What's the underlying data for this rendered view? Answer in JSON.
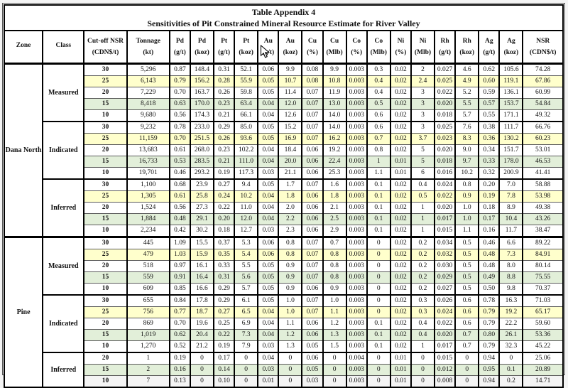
{
  "table": {
    "title": "Table Appendix 4",
    "subtitle": "Sensitivities of Pit Constrained Mineral Resource Estimate for River Valley",
    "columns": [
      {
        "label": "Zone",
        "unit": ""
      },
      {
        "label": "Class",
        "unit": ""
      },
      {
        "label": "Cut-off NSR",
        "unit": "(CDN$/t)"
      },
      {
        "label": "Tonnage",
        "unit": "(kt)"
      },
      {
        "label": "Pd",
        "unit": "(g/t)"
      },
      {
        "label": "Pd",
        "unit": "(koz)"
      },
      {
        "label": "Pt",
        "unit": "(g/t)"
      },
      {
        "label": "Pt",
        "unit": "(koz)"
      },
      {
        "label": "Au",
        "unit": "(g/t)"
      },
      {
        "label": "Au",
        "unit": "(koz)"
      },
      {
        "label": "Cu",
        "unit": "(%)"
      },
      {
        "label": "Cu",
        "unit": "(Mlb)"
      },
      {
        "label": "Co",
        "unit": "(%)"
      },
      {
        "label": "Co",
        "unit": "(Mlb)"
      },
      {
        "label": "Ni",
        "unit": "(%)"
      },
      {
        "label": "Ni",
        "unit": "(Mlb)"
      },
      {
        "label": "Rh",
        "unit": "(g/t)"
      },
      {
        "label": "Rh",
        "unit": "(koz)"
      },
      {
        "label": "Ag",
        "unit": "(g/t)"
      },
      {
        "label": "Ag",
        "unit": "(koz)"
      },
      {
        "label": "NSR",
        "unit": "(CDN$/t)"
      }
    ],
    "highlight_colors": {
      "25": "#FFFFCC",
      "15": "#E2EFD9"
    },
    "zones": [
      {
        "name": "Dana North",
        "classes": [
          {
            "name": "Measured",
            "rows": [
              [
                "30",
                "5,296",
                "0.87",
                "148.4",
                "0.31",
                "52.1",
                "0.06",
                "9.9",
                "0.08",
                "9.9",
                "0.003",
                "0.3",
                "0.02",
                "2",
                "0.027",
                "4.6",
                "0.62",
                "105.6",
                "74.28"
              ],
              [
                "25",
                "6,143",
                "0.79",
                "156.2",
                "0.28",
                "55.9",
                "0.05",
                "10.7",
                "0.08",
                "10.8",
                "0.003",
                "0.4",
                "0.02",
                "2.4",
                "0.025",
                "4.9",
                "0.60",
                "119.1",
                "67.86"
              ],
              [
                "20",
                "7,229",
                "0.70",
                "163.7",
                "0.26",
                "59.8",
                "0.05",
                "11.4",
                "0.07",
                "11.9",
                "0.003",
                "0.4",
                "0.02",
                "3",
                "0.022",
                "5.2",
                "0.59",
                "136.1",
                "60.99"
              ],
              [
                "15",
                "8,418",
                "0.63",
                "170.0",
                "0.23",
                "63.4",
                "0.04",
                "12.0",
                "0.07",
                "13.0",
                "0.003",
                "0.5",
                "0.02",
                "3",
                "0.020",
                "5.5",
                "0.57",
                "153.7",
                "54.84"
              ],
              [
                "10",
                "9,680",
                "0.56",
                "174.3",
                "0.21",
                "66.1",
                "0.04",
                "12.6",
                "0.07",
                "14.0",
                "0.003",
                "0.6",
                "0.02",
                "3",
                "0.018",
                "5.7",
                "0.55",
                "171.1",
                "49.32"
              ]
            ]
          },
          {
            "name": "Indicated",
            "rows": [
              [
                "30",
                "9,232",
                "0.78",
                "233.0",
                "0.29",
                "85.0",
                "0.05",
                "15.2",
                "0.07",
                "14.0",
                "0.003",
                "0.6",
                "0.02",
                "3",
                "0.025",
                "7.6",
                "0.38",
                "111.7",
                "66.76"
              ],
              [
                "25",
                "11,159",
                "0.70",
                "251.5",
                "0.26",
                "93.6",
                "0.05",
                "16.9",
                "0.07",
                "16.2",
                "0.003",
                "0.7",
                "0.02",
                "3.7",
                "0.023",
                "8.3",
                "0.36",
                "130.2",
                "60.23"
              ],
              [
                "20",
                "13,683",
                "0.61",
                "268.0",
                "0.23",
                "102.2",
                "0.04",
                "18.4",
                "0.06",
                "19.2",
                "0.003",
                "0.8",
                "0.02",
                "5",
                "0.020",
                "9.0",
                "0.34",
                "151.7",
                "53.01"
              ],
              [
                "15",
                "16,733",
                "0.53",
                "283.5",
                "0.21",
                "111.0",
                "0.04",
                "20.0",
                "0.06",
                "22.4",
                "0.003",
                "1",
                "0.01",
                "5",
                "0.018",
                "9.7",
                "0.33",
                "178.0",
                "46.53"
              ],
              [
                "10",
                "19,701",
                "0.46",
                "293.2",
                "0.19",
                "117.3",
                "0.03",
                "21.1",
                "0.06",
                "25.3",
                "0.003",
                "1.1",
                "0.01",
                "6",
                "0.016",
                "10.2",
                "0.32",
                "200.9",
                "41.41"
              ]
            ]
          },
          {
            "name": "Inferred",
            "rows": [
              [
                "30",
                "1,100",
                "0.68",
                "23.9",
                "0.27",
                "9.4",
                "0.05",
                "1.7",
                "0.07",
                "1.6",
                "0.003",
                "0.1",
                "0.02",
                "0.4",
                "0.024",
                "0.8",
                "0.20",
                "7.0",
                "58.88"
              ],
              [
                "25",
                "1,305",
                "0.61",
                "25.8",
                "0.24",
                "10.2",
                "0.04",
                "1.8",
                "0.06",
                "1.8",
                "0.003",
                "0.1",
                "0.02",
                "0.5",
                "0.022",
                "0.9",
                "0.19",
                "7.8",
                "53.98"
              ],
              [
                "20",
                "1,524",
                "0.56",
                "27.3",
                "0.22",
                "11.0",
                "0.04",
                "2.0",
                "0.06",
                "2.1",
                "0.003",
                "0.1",
                "0.02",
                "1",
                "0.020",
                "1.0",
                "0.18",
                "8.9",
                "49.38"
              ],
              [
                "15",
                "1,884",
                "0.48",
                "29.1",
                "0.20",
                "12.0",
                "0.04",
                "2.2",
                "0.06",
                "2.5",
                "0.003",
                "0.1",
                "0.02",
                "1",
                "0.017",
                "1.0",
                "0.17",
                "10.4",
                "43.26"
              ],
              [
                "10",
                "2,234",
                "0.42",
                "30.2",
                "0.18",
                "12.7",
                "0.03",
                "2.3",
                "0.06",
                "2.9",
                "0.003",
                "0.1",
                "0.02",
                "1",
                "0.015",
                "1.1",
                "0.16",
                "11.7",
                "38.47"
              ]
            ]
          }
        ]
      },
      {
        "name": "Pine",
        "classes": [
          {
            "name": "Measured",
            "rows": [
              [
                "30",
                "445",
                "1.09",
                "15.5",
                "0.37",
                "5.3",
                "0.06",
                "0.8",
                "0.07",
                "0.7",
                "0.003",
                "0",
                "0.02",
                "0.2",
                "0.034",
                "0.5",
                "0.46",
                "6.6",
                "89.22"
              ],
              [
                "25",
                "479",
                "1.03",
                "15.9",
                "0.35",
                "5.4",
                "0.06",
                "0.8",
                "0.07",
                "0.8",
                "0.003",
                "0",
                "0.02",
                "0.2",
                "0.032",
                "0.5",
                "0.48",
                "7.3",
                "84.91"
              ],
              [
                "20",
                "518",
                "0.97",
                "16.1",
                "0.33",
                "5.5",
                "0.05",
                "0.9",
                "0.07",
                "0.8",
                "0.003",
                "0",
                "0.02",
                "0.2",
                "0.030",
                "0.5",
                "0.48",
                "8.0",
                "80.14"
              ],
              [
                "15",
                "559",
                "0.91",
                "16.4",
                "0.31",
                "5.6",
                "0.05",
                "0.9",
                "0.07",
                "0.8",
                "0.003",
                "0",
                "0.02",
                "0.2",
                "0.029",
                "0.5",
                "0.49",
                "8.8",
                "75.55"
              ],
              [
                "10",
                "609",
                "0.85",
                "16.6",
                "0.29",
                "5.7",
                "0.05",
                "0.9",
                "0.06",
                "0.9",
                "0.003",
                "0",
                "0.02",
                "0.2",
                "0.027",
                "0.5",
                "0.50",
                "9.8",
                "70.37"
              ]
            ]
          },
          {
            "name": "Indicated",
            "rows": [
              [
                "30",
                "655",
                "0.84",
                "17.8",
                "0.29",
                "6.1",
                "0.05",
                "1.0",
                "0.07",
                "1.0",
                "0.003",
                "0",
                "0.02",
                "0.3",
                "0.026",
                "0.6",
                "0.78",
                "16.3",
                "71.03"
              ],
              [
                "25",
                "756",
                "0.77",
                "18.7",
                "0.27",
                "6.5",
                "0.04",
                "1.0",
                "0.07",
                "1.1",
                "0.003",
                "0",
                "0.02",
                "0.3",
                "0.024",
                "0.6",
                "0.79",
                "19.2",
                "65.17"
              ],
              [
                "20",
                "869",
                "0.70",
                "19.6",
                "0.25",
                "6.9",
                "0.04",
                "1.1",
                "0.06",
                "1.2",
                "0.003",
                "0.1",
                "0.02",
                "0.4",
                "0.022",
                "0.6",
                "0.79",
                "22.2",
                "59.60"
              ],
              [
                "15",
                "1,019",
                "0.62",
                "20.4",
                "0.22",
                "7.3",
                "0.04",
                "1.2",
                "0.06",
                "1.3",
                "0.003",
                "0.1",
                "0.02",
                "0.4",
                "0.020",
                "0.7",
                "0.80",
                "26.1",
                "53.36"
              ],
              [
                "10",
                "1,270",
                "0.52",
                "21.2",
                "0.19",
                "7.9",
                "0.03",
                "1.3",
                "0.05",
                "1.5",
                "0.003",
                "0.1",
                "0.02",
                "1",
                "0.017",
                "0.7",
                "0.79",
                "32.3",
                "45.22"
              ]
            ]
          },
          {
            "name": "Inferred",
            "rows": [
              [
                "20",
                "1",
                "0.19",
                "0",
                "0.17",
                "0",
                "0.04",
                "0",
                "0.06",
                "0",
                "0.004",
                "0",
                "0.01",
                "0",
                "0.015",
                "0",
                "0.94",
                "0",
                "25.06"
              ],
              [
                "15",
                "2",
                "0.16",
                "0",
                "0.14",
                "0",
                "0.03",
                "0",
                "0.05",
                "0",
                "0.003",
                "0",
                "0.01",
                "0",
                "0.012",
                "0",
                "0.95",
                "0.1",
                "20.89"
              ],
              [
                "10",
                "7",
                "0.13",
                "0",
                "0.10",
                "0",
                "0.01",
                "0",
                "0.03",
                "0",
                "0.003",
                "0",
                "0.01",
                "0",
                "0.008",
                "0",
                "0.94",
                "0.2",
                "14.71"
              ]
            ]
          }
        ]
      }
    ]
  }
}
